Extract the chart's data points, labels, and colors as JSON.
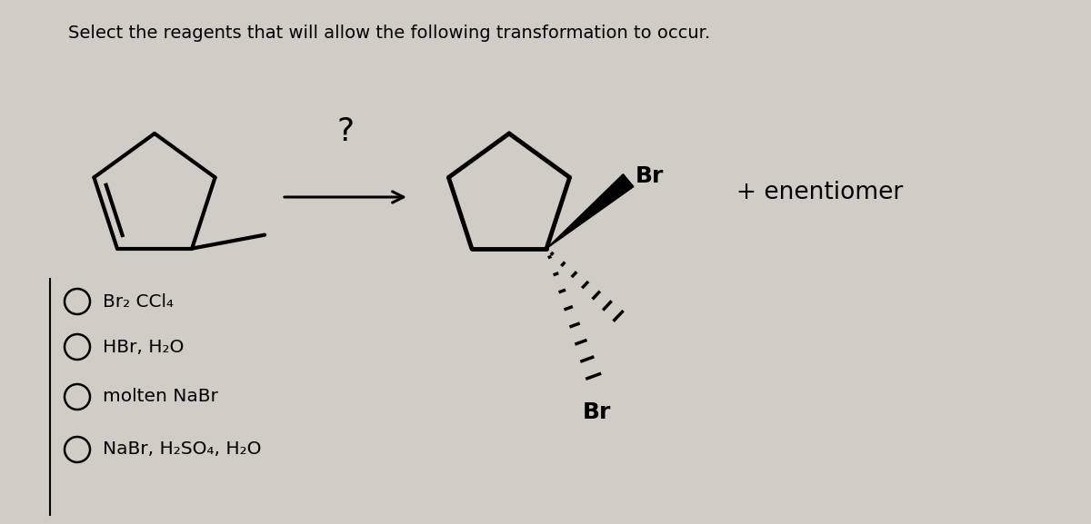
{
  "title": "Select the reagents that will allow the following transformation to occur.",
  "bg_color": "#d0ccc6",
  "options": [
    "Br₂ CCl₄",
    "HBr, H₂O",
    "molten NaBr",
    "NaBr, H₂SO₄, H₂O"
  ],
  "plus_enentiomer": "+ enentiomer",
  "question_mark": "?"
}
